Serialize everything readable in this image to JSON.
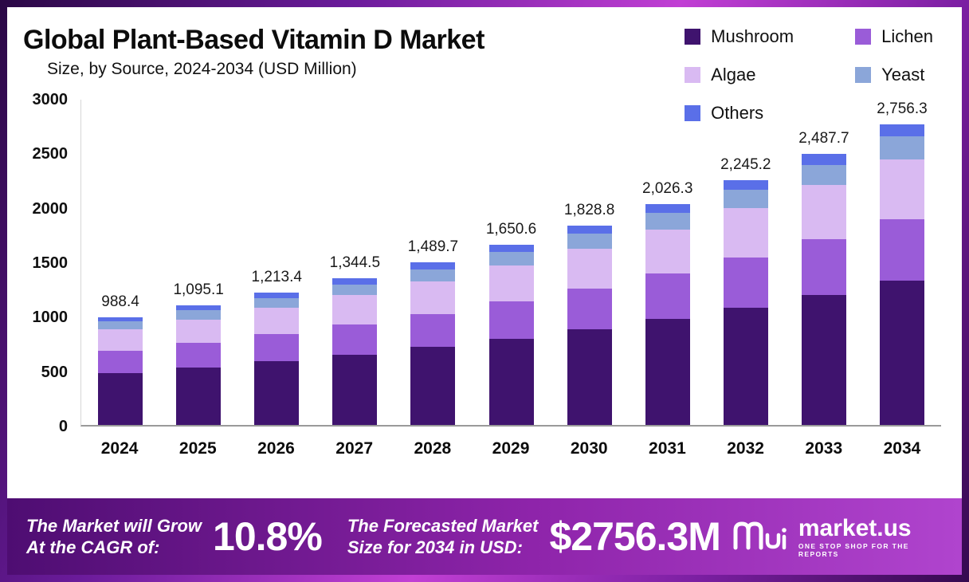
{
  "header": {
    "title": "Global Plant-Based Vitamin D Market",
    "subtitle": "Size, by Source, 2024-2034 (USD Million)"
  },
  "chart_data": {
    "type": "bar",
    "stacked": true,
    "title": "Global Plant-Based Vitamin D Market Size, by Source, 2024-2034 (USD Million)",
    "categories": [
      "2024",
      "2025",
      "2026",
      "2027",
      "2028",
      "2029",
      "2030",
      "2031",
      "2032",
      "2033",
      "2034"
    ],
    "totals": [
      988.4,
      1095.1,
      1213.4,
      1344.5,
      1489.7,
      1650.6,
      1828.8,
      2026.3,
      2245.2,
      2487.7,
      2756.3
    ],
    "total_labels": [
      "988.4",
      "1,095.1",
      "1,213.4",
      "1,344.5",
      "1,489.7",
      "1,650.6",
      "1,828.8",
      "2,026.3",
      "2,245.2",
      "2,487.7",
      "2,756.3"
    ],
    "series": [
      {
        "name": "Mushroom",
        "color": "#3f136e",
        "values": [
          474.4,
          525.6,
          582.4,
          645.4,
          715.1,
          792.3,
          877.8,
          972.6,
          1077.7,
          1194.1,
          1323.0
        ]
      },
      {
        "name": "Lichen",
        "color": "#9a5cd8",
        "values": [
          202.6,
          224.5,
          248.7,
          275.6,
          305.4,
          338.4,
          374.9,
          415.4,
          460.3,
          510.0,
          565.0
        ]
      },
      {
        "name": "Algae",
        "color": "#d9baf2",
        "values": [
          197.7,
          219.0,
          242.7,
          268.9,
          297.9,
          330.1,
          365.8,
          405.3,
          449.0,
          497.5,
          551.3
        ]
      },
      {
        "name": "Yeast",
        "color": "#8ba6d9",
        "values": [
          74.1,
          82.1,
          91.0,
          100.8,
          111.7,
          123.8,
          137.2,
          152.0,
          168.4,
          186.6,
          206.7
        ]
      },
      {
        "name": "Others",
        "color": "#5a6fe8",
        "values": [
          39.5,
          43.8,
          48.5,
          53.8,
          59.6,
          66.0,
          73.2,
          81.1,
          89.8,
          99.5,
          110.3
        ]
      }
    ],
    "xlabel": "",
    "ylabel": "",
    "ylim": [
      0,
      3000
    ],
    "yticks": [
      0,
      500,
      1000,
      1500,
      2000,
      2500,
      3000
    ],
    "grid": false,
    "legend_position": "top-right"
  },
  "footer": {
    "cagr_label_line1": "The Market will Grow",
    "cagr_label_line2": "At the CAGR of:",
    "cagr_value": "10.8%",
    "forecast_label_line1": "The Forecasted Market",
    "forecast_label_line2": "Size for 2034 in USD:",
    "forecast_value": "$2756.3M",
    "brand": "market.us",
    "brand_tagline": "ONE STOP SHOP FOR THE REPORTS"
  },
  "colors": {
    "frame_gradient_start": "#2a0845",
    "frame_gradient_mid": "#c13fd4",
    "footer_gradient_start": "#4e0d72",
    "footer_gradient_end": "#b044ce"
  }
}
